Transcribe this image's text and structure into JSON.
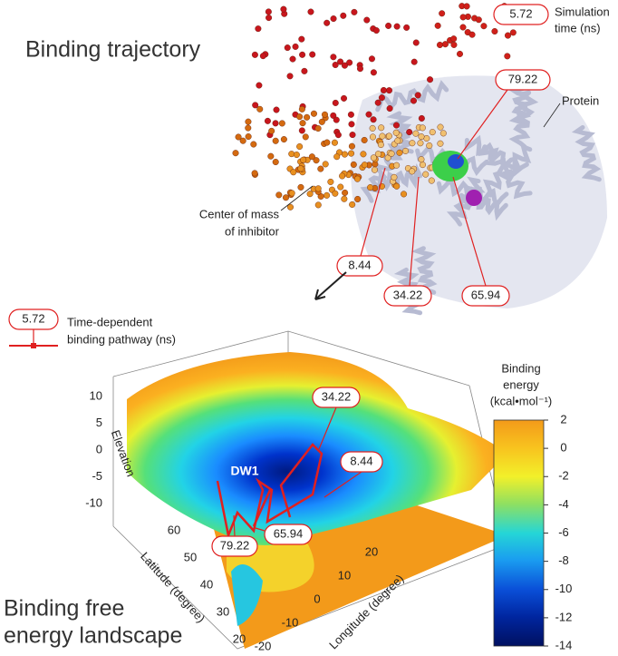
{
  "top": {
    "title": "Binding trajectory",
    "simulation_time": [
      "Simulation",
      "time (ns)"
    ],
    "protein": "Protein",
    "center_of_mass": [
      "Center of mass",
      "of inhibitor"
    ],
    "time_markers": [
      "5.72",
      "79.22",
      "8.44",
      "34.22",
      "65.94"
    ]
  },
  "bottom": {
    "title": [
      "Binding free",
      "energy landscape"
    ],
    "legend": {
      "marker": "5.72",
      "label": [
        "Time-dependent",
        "binding pathway (ns)"
      ]
    },
    "axes": {
      "elevation": "Elevation",
      "latitude": "Latitude (degree)",
      "longitude": "Longitude (degree)"
    },
    "elevation_ticks": [
      "10",
      "5",
      "0",
      "-5",
      "-10"
    ],
    "latitude_ticks": [
      "60",
      "50",
      "40",
      "30",
      "20"
    ],
    "longitude_ticks": [
      "-20",
      "-10",
      "0",
      "10",
      "20"
    ],
    "well": "DW1",
    "time_markers": [
      "34.22",
      "8.44",
      "79.22",
      "65.94"
    ],
    "colorbar": {
      "title": [
        "Binding",
        "energy",
        "(kcal•mol⁻¹)"
      ],
      "ticks": [
        "2",
        "0",
        "-2",
        "-4",
        "-6",
        "-8",
        "-10",
        "-12",
        "-14"
      ]
    }
  }
}
